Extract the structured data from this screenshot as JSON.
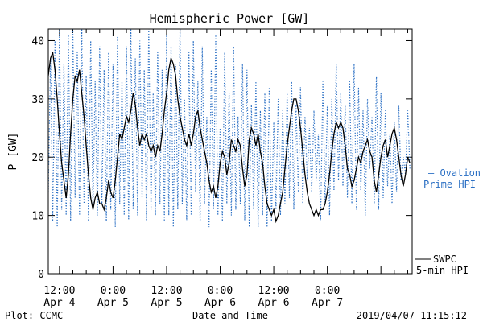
{
  "chart_data": {
    "type": "line",
    "title": "Hemispheric Power [GW]",
    "xlabel": "Date and Time",
    "ylabel": "P [GW]",
    "ylim": [
      0,
      42
    ],
    "yticks": [
      0,
      10,
      20,
      30,
      40
    ],
    "x_unit": "hours since 2019-04-04 00:00 UTC",
    "xlim": [
      9.5,
      91
    ],
    "xticks": [
      {
        "x": 12,
        "time": "12:00",
        "date": "Apr 4"
      },
      {
        "x": 24,
        "time": "0:00",
        "date": "Apr 5"
      },
      {
        "x": 36,
        "time": "12:00",
        "date": "Apr 5"
      },
      {
        "x": 48,
        "time": "0:00",
        "date": "Apr 6"
      },
      {
        "x": 60,
        "time": "12:00",
        "date": "Apr 6"
      },
      {
        "x": 72,
        "time": "0:00",
        "date": "Apr 7"
      }
    ],
    "grid": false,
    "legend_placement": "right",
    "series": [
      {
        "name": "SWPC 5-min HPI",
        "color": "#000000",
        "style": "solid",
        "x": [
          9.5,
          10,
          10.5,
          11,
          11.5,
          12,
          12.5,
          13,
          13.5,
          14,
          14.5,
          15,
          15.5,
          16,
          16.5,
          17,
          17.5,
          18,
          18.5,
          19,
          19.5,
          20,
          20.5,
          21,
          21.5,
          22,
          22.5,
          23,
          23.5,
          24,
          24.5,
          25,
          25.5,
          26,
          26.5,
          27,
          27.5,
          28,
          28.5,
          29,
          29.5,
          30,
          30.5,
          31,
          31.5,
          32,
          32.5,
          33,
          33.5,
          34,
          34.5,
          35,
          35.5,
          36,
          36.5,
          37,
          37.5,
          38,
          38.5,
          39,
          39.5,
          40,
          40.5,
          41,
          41.5,
          42,
          42.5,
          43,
          43.5,
          44,
          44.5,
          45,
          45.5,
          46,
          46.5,
          47,
          47.5,
          48,
          48.5,
          49,
          49.5,
          50,
          50.5,
          51,
          51.5,
          52,
          52.5,
          53,
          53.5,
          54,
          54.5,
          55,
          55.5,
          56,
          56.5,
          57,
          57.5,
          58,
          58.5,
          59,
          59.5,
          60,
          60.5,
          61,
          61.5,
          62,
          62.5,
          63,
          63.5,
          64,
          64.5,
          65,
          65.5,
          66,
          66.5,
          67,
          67.5,
          68,
          68.5,
          69,
          69.5,
          70,
          70.5,
          71,
          71.5,
          72,
          72.5,
          73,
          73.5,
          74,
          74.5,
          75,
          75.5,
          76,
          76.5,
          77,
          77.5,
          78,
          78.5,
          79,
          79.5,
          80,
          80.5,
          81,
          81.5,
          82,
          82.5,
          83,
          83.5,
          84,
          84.5,
          85,
          85.5,
          86,
          86.5,
          87,
          87.5,
          88,
          88.5,
          89,
          89.5,
          90,
          90.5
        ],
        "values": [
          34,
          37,
          38,
          35,
          30,
          24,
          19,
          16,
          13,
          17,
          24,
          30,
          34,
          33,
          35,
          31,
          27,
          22,
          17,
          13,
          11,
          13,
          14,
          12,
          12,
          11,
          13,
          16,
          14,
          13,
          16,
          20,
          24,
          23,
          25,
          27,
          26,
          28,
          31,
          29,
          25,
          22,
          24,
          23,
          24,
          22,
          21,
          22,
          20,
          22,
          21,
          24,
          28,
          31,
          35,
          37,
          36,
          34,
          30,
          27,
          25,
          23,
          22,
          24,
          22,
          24,
          27,
          28,
          25,
          23,
          21,
          19,
          16,
          14,
          15,
          13,
          15,
          19,
          21,
          20,
          17,
          19,
          23,
          22,
          21,
          23,
          22,
          18,
          15,
          17,
          23,
          25,
          24,
          22,
          24,
          21,
          19,
          15,
          12,
          11,
          10,
          11,
          9,
          10,
          12,
          14,
          18,
          22,
          25,
          28,
          30,
          30,
          28,
          25,
          21,
          17,
          14,
          12,
          11,
          10,
          11,
          10,
          11,
          11,
          12,
          14,
          17,
          21,
          24,
          26,
          25,
          26,
          25,
          22,
          18,
          17,
          15,
          16,
          18,
          20,
          19,
          21,
          22,
          23,
          21,
          20,
          16,
          14,
          17,
          20,
          22,
          23,
          20,
          22,
          24,
          25,
          23,
          20,
          17,
          15,
          17,
          20,
          19
        ]
      },
      {
        "name": "Ovation Prime HPI",
        "color": "#2a6fc4",
        "style": "dotted",
        "x": [
          9.5,
          10,
          10.5,
          11,
          11.5,
          12,
          12.5,
          13,
          13.5,
          14,
          14.5,
          15,
          15.5,
          16,
          16.5,
          17,
          17.5,
          18,
          18.5,
          19,
          19.5,
          20,
          20.5,
          21,
          21.5,
          22,
          22.5,
          23,
          23.5,
          24,
          24.5,
          25,
          25.5,
          26,
          26.5,
          27,
          27.5,
          28,
          28.5,
          29,
          29.5,
          30,
          30.5,
          31,
          31.5,
          32,
          32.5,
          33,
          33.5,
          34,
          34.5,
          35,
          35.5,
          36,
          36.5,
          37,
          37.5,
          38,
          38.5,
          39,
          39.5,
          40,
          40.5,
          41,
          41.5,
          42,
          42.5,
          43,
          43.5,
          44,
          44.5,
          45,
          45.5,
          46,
          46.5,
          47,
          47.5,
          48,
          48.5,
          49,
          49.5,
          50,
          50.5,
          51,
          51.5,
          52,
          52.5,
          53,
          53.5,
          54,
          54.5,
          55,
          55.5,
          56,
          56.5,
          57,
          57.5,
          58,
          58.5,
          59,
          59.5,
          60,
          60.5,
          61,
          61.5,
          62,
          62.5,
          63,
          63.5,
          64,
          64.5,
          65,
          65.5,
          66,
          66.5,
          67,
          67.5,
          68,
          68.5,
          69,
          69.5,
          70,
          70.5,
          71,
          71.5,
          72,
          72.5,
          73,
          73.5,
          74,
          74.5,
          75,
          75.5,
          76,
          76.5,
          77,
          77.5,
          78,
          78.5,
          79,
          79.5,
          80,
          80.5,
          81,
          81.5,
          82,
          82.5,
          83,
          83.5,
          84,
          84.5,
          85,
          85.5,
          86,
          86.5,
          87,
          87.5,
          88,
          88.5,
          89,
          89.5,
          90,
          90.5
        ],
        "values": [
          14,
          37,
          9,
          40,
          8,
          42,
          11,
          36,
          10,
          41,
          9,
          42,
          13,
          38,
          10,
          42,
          12,
          34,
          9,
          40,
          11,
          33,
          10,
          39,
          12,
          35,
          9,
          38,
          11,
          36,
          8,
          41,
          12,
          33,
          10,
          39,
          9,
          42,
          11,
          37,
          10,
          40,
          13,
          35,
          9,
          42,
          11,
          31,
          10,
          38,
          12,
          35,
          9,
          41,
          10,
          39,
          8,
          36,
          11,
          42,
          12,
          30,
          9,
          38,
          10,
          40,
          14,
          33,
          9,
          39,
          12,
          27,
          8,
          35,
          11,
          41,
          10,
          25,
          9,
          38,
          12,
          31,
          10,
          39,
          11,
          27,
          12,
          36,
          9,
          35,
          8,
          29,
          11,
          33,
          8,
          28,
          10,
          31,
          8,
          32,
          9,
          26,
          11,
          30,
          10,
          28,
          12,
          31,
          13,
          33,
          11,
          29,
          14,
          32,
          12,
          27,
          16,
          25,
          14,
          28,
          16,
          24,
          9,
          33,
          12,
          29,
          10,
          30,
          14,
          36,
          16,
          31,
          15,
          29,
          13,
          33,
          12,
          36,
          11,
          32,
          14,
          28,
          10,
          30,
          18,
          27,
          12,
          34,
          11,
          31,
          13,
          28,
          15,
          24,
          12,
          26,
          14,
          29,
          16,
          20,
          17,
          28,
          18
        ]
      }
    ]
  },
  "legend": {
    "swpc_line1": "SWPC",
    "swpc_line2": "5-min HPI",
    "ovation_line1": "— Ovation",
    "ovation_line2": "Prime HPI"
  },
  "footer": {
    "left": "Plot: CCMC",
    "center": "Date and Time",
    "right": "2019/04/07 11:15:12"
  }
}
